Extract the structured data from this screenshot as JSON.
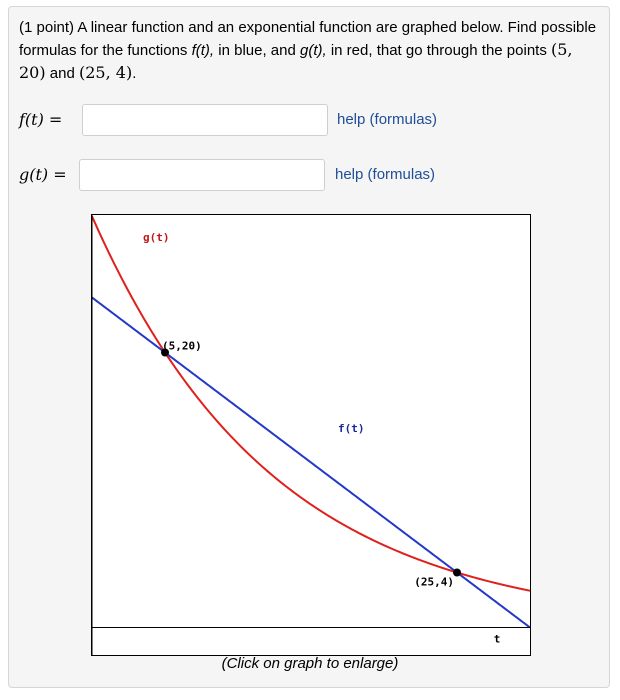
{
  "problem": {
    "prefix": "(1 point) A linear function and an exponential function are graphed below. Find possible formulas for the functions ",
    "f_name": "f(t),",
    "mid1": " in blue, and ",
    "g_name": "g(t),",
    "mid2": " in red, that go through the points ",
    "p1": "(5, 20)",
    "and": " and ",
    "p2": "(25, 4)",
    "end": "."
  },
  "answers": [
    {
      "label_fn": "f(t)",
      "label_eq": " =",
      "value": "",
      "help": "help (formulas)"
    },
    {
      "label_fn": "g(t)",
      "label_eq": " =",
      "value": "",
      "help": "help (formulas)"
    }
  ],
  "chart_data": {
    "type": "line",
    "xlabel": "t",
    "series": [
      {
        "name": "f(t)",
        "color": "#2438c8",
        "kind": "linear",
        "points": [
          [
            5,
            20
          ],
          [
            25,
            4
          ]
        ]
      },
      {
        "name": "g(t)",
        "color": "#e0201c",
        "kind": "exponential",
        "points": [
          [
            5,
            20
          ],
          [
            25,
            4
          ]
        ]
      }
    ],
    "annotations": [
      {
        "text": "(5,20)",
        "x": 5,
        "y": 20
      },
      {
        "text": "(25,4)",
        "x": 25,
        "y": 4
      }
    ],
    "marked_points": [
      [
        5,
        20
      ],
      [
        25,
        4
      ]
    ],
    "xlim": [
      0,
      30
    ],
    "ylim": [
      -2,
      30
    ],
    "grid": false
  },
  "caption": "(Click on graph to enlarge)"
}
